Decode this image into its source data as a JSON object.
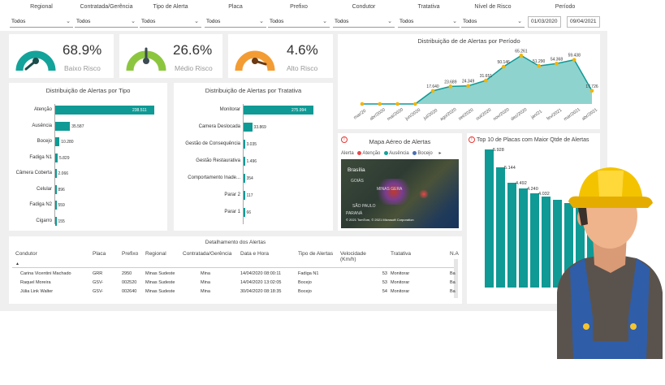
{
  "filters": [
    {
      "label": "Regional",
      "value": "Todos"
    },
    {
      "label": "Contratada/Gerência",
      "value": "Todos"
    },
    {
      "label": "Tipo de Alerta",
      "value": "Todos"
    },
    {
      "label": "Placa",
      "value": "Todos"
    },
    {
      "label": "Prefixo",
      "value": "Todos"
    },
    {
      "label": "Condutor",
      "value": "Todos"
    },
    {
      "label": "Tratativa",
      "value": "Todos"
    },
    {
      "label": "Nível de Risco",
      "value": "Todos"
    }
  ],
  "period": {
    "label": "Período",
    "start": "01/03/2020",
    "end": "09/04/2021"
  },
  "kpis": [
    {
      "value": "68.9%",
      "label": "Baixo Risco",
      "color": "#13a39a"
    },
    {
      "value": "26.6%",
      "label": "Médio Risco",
      "color": "#8cc63f"
    },
    {
      "value": "4.6%",
      "label": "Alto Risco",
      "color": "#f39c34"
    }
  ],
  "by_type": {
    "title": "Distribuição de Alertas por Tipo",
    "items": [
      {
        "label": "Atenção",
        "value": "238.511",
        "num": 238511
      },
      {
        "label": "Ausência",
        "value": "35.587",
        "num": 35587
      },
      {
        "label": "Bocejo",
        "value": "10.280",
        "num": 10280
      },
      {
        "label": "Fadiga N1",
        "value": "5.829",
        "num": 5829
      },
      {
        "label": "Câmera Coberta",
        "value": "2.066",
        "num": 2066
      },
      {
        "label": "Celular",
        "value": "896",
        "num": 896
      },
      {
        "label": "Fadiga N2",
        "value": "559",
        "num": 559
      },
      {
        "label": "Cigarro",
        "value": "155",
        "num": 155
      }
    ]
  },
  "by_treatment": {
    "title": "Distribuição de Alertas por Tratativa",
    "items": [
      {
        "label": "Monitorar",
        "value": "275.994",
        "num": 275994
      },
      {
        "label": "Camera Deslocada",
        "value": "33.869",
        "num": 33869
      },
      {
        "label": "Gestão de Consequência",
        "value": "3.035",
        "num": 3035
      },
      {
        "label": "Gestão Restaurativa",
        "value": "1.496",
        "num": 1496
      },
      {
        "label": "Comportamento Inade...",
        "value": "354",
        "num": 354
      },
      {
        "label": "Parar 2",
        "value": "117",
        "num": 117
      },
      {
        "label": "Parar 1",
        "value": "66",
        "num": 66
      }
    ]
  },
  "chart_data": {
    "type": "area",
    "title": "Distribuição de de Alertas por Período",
    "categories": [
      "mar/20",
      "abr/2020",
      "mai/2020",
      "jun/2020",
      "jul/2020",
      "ago/2020",
      "set/2020",
      "out/2020",
      "nov/2020",
      "dez/2020",
      "jan/21",
      "fev/2021",
      "mar/2021",
      "abr/2021"
    ],
    "values": [
      0,
      0,
      0,
      0,
      17.64,
      23.689,
      24.349,
      31.651,
      50.146,
      65.261,
      51.29,
      54.368,
      59.438,
      17.726
    ],
    "data_labels": [
      "",
      "",
      "",
      "",
      "17.640",
      "23.689",
      "24.349",
      "31.651",
      "50.146",
      "65.261",
      "51.290",
      "54.368",
      "59.438",
      "17.726"
    ],
    "ylim": [
      0,
      70
    ]
  },
  "map": {
    "title": "Mapa Aéreo de Alertas",
    "legend_label": "Alerta",
    "legend": [
      {
        "name": "Atenção",
        "color": "#e8484a"
      },
      {
        "name": "Ausência",
        "color": "#13a39a"
      },
      {
        "name": "Bocejo",
        "color": "#4a6fb5"
      }
    ],
    "places": [
      "Brasília",
      "GOIÁS",
      "MINAS GERA",
      "SÃO PAULO",
      "PARANÁ"
    ],
    "credit": "© 2021 TomTom, © 2021 Microsoft Corporation"
  },
  "top_plates": {
    "title": "Top 10 de Placas com Maior Qtde de Alertas",
    "values": [
      "5.928",
      "5.144",
      "4.492",
      "4.240",
      "4.032"
    ],
    "nums": [
      5928,
      5144,
      4492,
      4240,
      4032
    ]
  },
  "detail": {
    "title": "Detalhamento dos Alertas",
    "columns": [
      "Condutor",
      "Placa",
      "Prefixo",
      "Regional",
      "Contratada/Gerência",
      "Data e Hora",
      "Tipo de Alertas",
      "Velocidade (Km/h)",
      "Tratativa",
      "N.A"
    ],
    "rows": [
      [
        "Carina Vicentini Machado",
        "GRR",
        "2950",
        "Minas Sudeste",
        "Mina",
        "14/04/2020 08:00:11",
        "Fadiga N1",
        "53",
        "Monitorar",
        "Ba"
      ],
      [
        "Raquel Moreira",
        "GSV-",
        "002520",
        "Minas Sudeste",
        "Mina",
        "14/04/2020 13:02:05",
        "Bocejo",
        "53",
        "Monitorar",
        "Ba"
      ],
      [
        "Júlia Link Walter",
        "GSV-",
        "002640",
        "Minas Sudeste",
        "Mina",
        "30/04/2020 08:18:35",
        "Bocejo",
        "54",
        "Monitorar",
        "Ba"
      ]
    ]
  }
}
